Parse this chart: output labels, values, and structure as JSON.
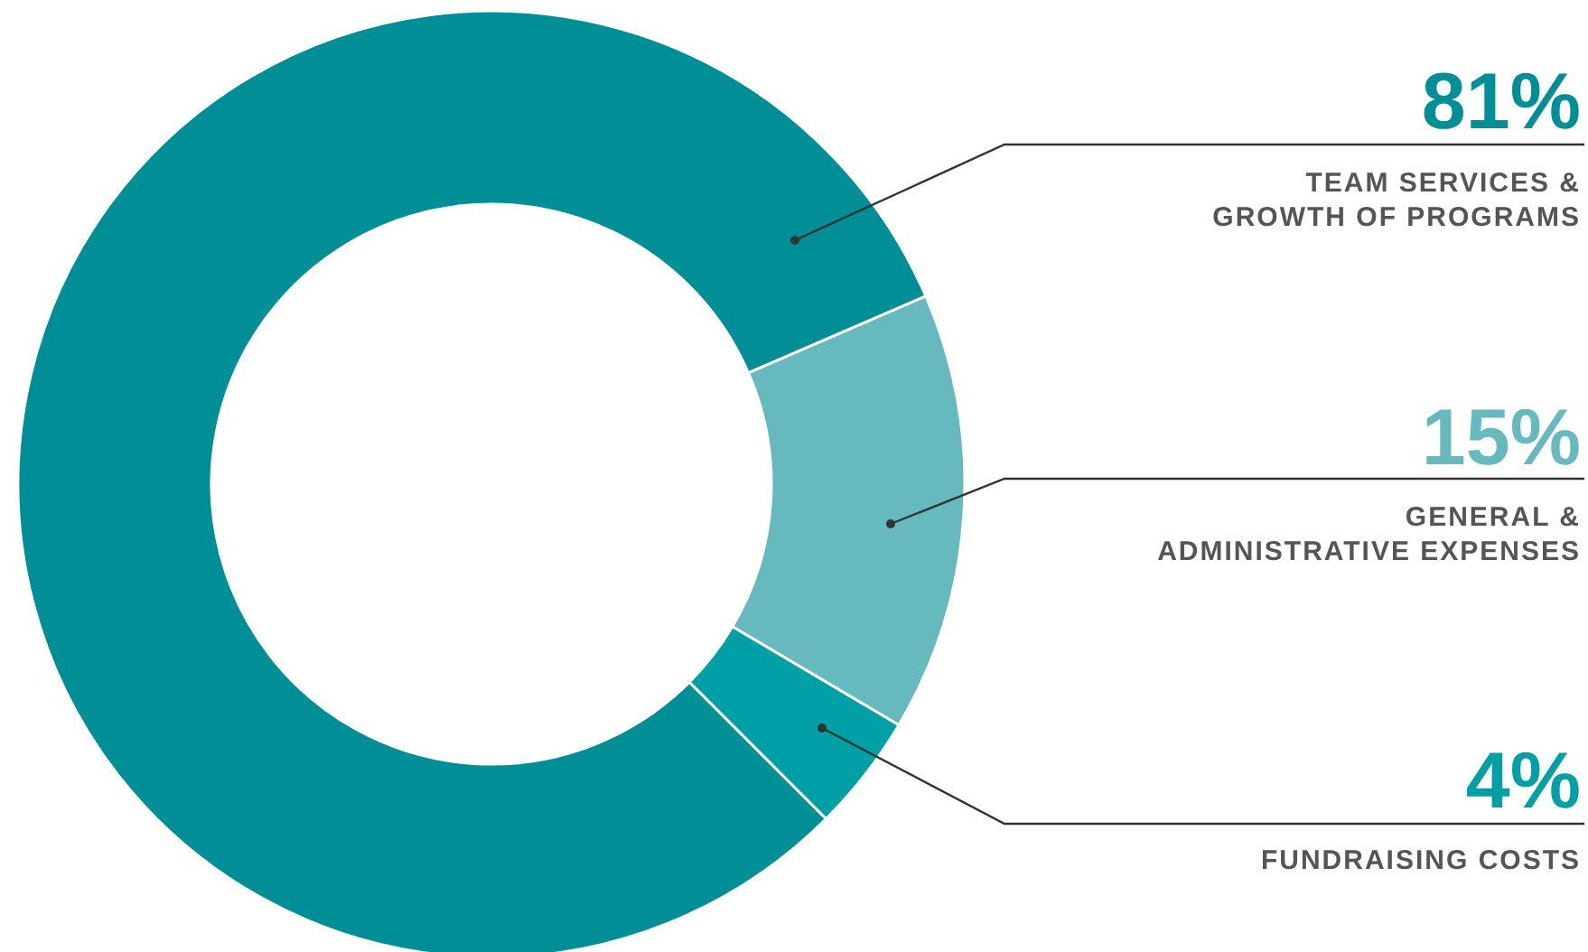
{
  "chart_data": {
    "type": "donut",
    "categories": [
      "TEAM SERVICES &\nGROWTH OF PROGRAMS",
      "GENERAL &\nADMINISTRATIVE EXPENSES",
      "FUNDRAISING COSTS"
    ],
    "values": [
      81,
      15,
      4
    ],
    "value_labels": [
      "81%",
      "15%",
      "4%"
    ],
    "colors": [
      "#008f96",
      "#66b9bd",
      "#00a0a6"
    ]
  }
}
